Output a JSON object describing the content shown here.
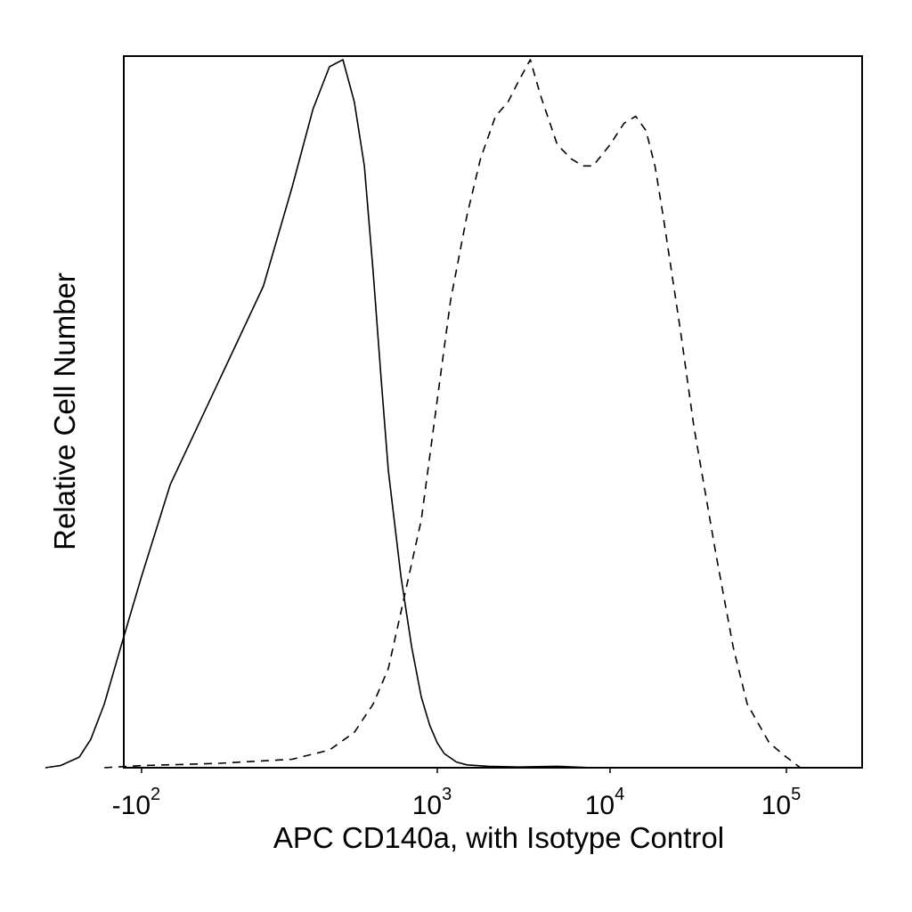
{
  "chart_data": {
    "type": "line",
    "xlabel": "APC CD140a, with Isotype Control",
    "ylabel": "Relative Cell Number",
    "x_scale": "biexponential",
    "xlim": [
      -500,
      200000
    ],
    "ylim": [
      0,
      100
    ],
    "grid": false,
    "x_ticks": [
      {
        "base": "-10",
        "exp": "2",
        "value": -100
      },
      {
        "base": "10",
        "exp": "3",
        "value": 1000
      },
      {
        "base": "10",
        "exp": "4",
        "value": 10000
      },
      {
        "base": "10",
        "exp": "5",
        "value": 100000
      }
    ],
    "series": [
      {
        "style": "solid",
        "color": "#000000",
        "x": [
          -500,
          -400,
          -300,
          -250,
          -200,
          -150,
          -100,
          -50,
          0,
          50,
          100,
          150,
          200,
          250,
          300,
          350,
          400,
          450,
          500,
          600,
          700,
          800,
          900,
          1000,
          1100,
          1300,
          1500,
          2000,
          3000,
          5000,
          8000
        ],
        "y": [
          0,
          0.3,
          1.5,
          4,
          9,
          17,
          27,
          40,
          54,
          68,
          82,
          93,
          99,
          100,
          94,
          85,
          70,
          55,
          42,
          27,
          17,
          10,
          6,
          3.5,
          2,
          0.8,
          0.4,
          0.2,
          0.1,
          0.2,
          0
        ]
      },
      {
        "style": "dashed",
        "color": "#000000",
        "x": [
          -200,
          -100,
          0,
          100,
          200,
          300,
          400,
          500,
          600,
          800,
          1000,
          1200,
          1500,
          1800,
          2200,
          2600,
          3000,
          3500,
          4000,
          5000,
          6000,
          7000,
          8000,
          10000,
          12000,
          14000,
          16000,
          18000,
          20000,
          25000,
          30000,
          40000,
          50000,
          60000,
          80000,
          100000,
          120000
        ],
        "y": [
          0,
          0.3,
          0.6,
          1.2,
          2.5,
          5,
          9,
          14,
          22,
          35,
          52,
          66,
          78,
          86,
          92,
          94,
          97,
          100,
          95,
          88,
          86,
          85,
          85,
          88,
          91,
          92,
          90,
          85,
          78,
          62,
          48,
          30,
          17,
          9,
          3.5,
          1.5,
          0
        ]
      }
    ]
  }
}
